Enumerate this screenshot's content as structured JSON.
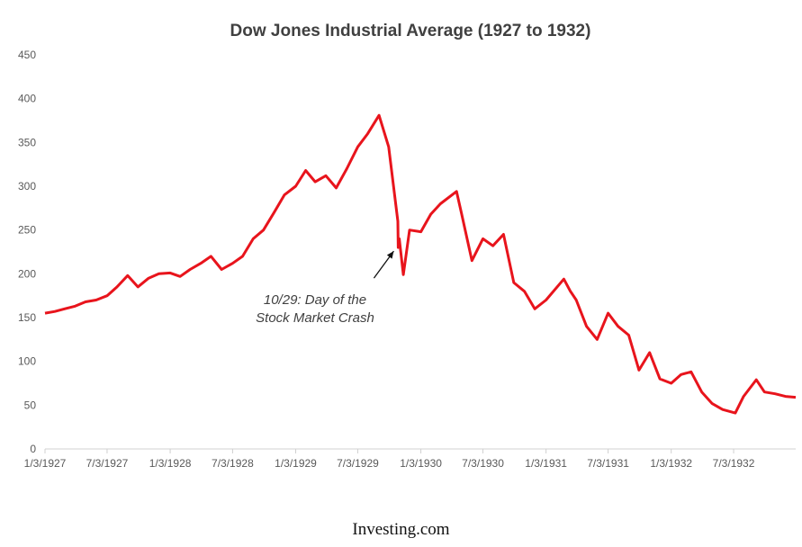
{
  "chart_data": {
    "type": "line",
    "title": "Dow Jones Industrial Average (1927 to 1932)",
    "xlabel": "",
    "ylabel": "",
    "ylim": [
      0,
      450
    ],
    "yticks": [
      "0",
      "50",
      "100",
      "150",
      "200",
      "250",
      "300",
      "350",
      "400",
      "450"
    ],
    "xticks": [
      "1/3/1927",
      "7/3/1927",
      "1/3/1928",
      "7/3/1928",
      "1/3/1929",
      "7/3/1929",
      "1/3/1930",
      "7/3/1930",
      "1/3/1931",
      "7/3/1931",
      "1/3/1932",
      "7/3/1932"
    ],
    "xlim": [
      "1927-01-03",
      "1932-12-31"
    ],
    "grid": false,
    "legend": "none",
    "series": [
      {
        "color": "#e8141c",
        "points": [
          [
            "1927-01-03",
            155
          ],
          [
            "1927-02-01",
            157
          ],
          [
            "1927-03-01",
            160
          ],
          [
            "1927-04-01",
            163
          ],
          [
            "1927-05-01",
            168
          ],
          [
            "1927-06-01",
            170
          ],
          [
            "1927-07-03",
            175
          ],
          [
            "1927-08-01",
            185
          ],
          [
            "1927-09-01",
            198
          ],
          [
            "1927-10-01",
            185
          ],
          [
            "1927-11-01",
            195
          ],
          [
            "1927-12-01",
            200
          ],
          [
            "1928-01-03",
            201
          ],
          [
            "1928-02-01",
            197
          ],
          [
            "1928-03-01",
            205
          ],
          [
            "1928-04-01",
            212
          ],
          [
            "1928-05-01",
            220
          ],
          [
            "1928-06-01",
            205
          ],
          [
            "1928-07-03",
            212
          ],
          [
            "1928-08-01",
            220
          ],
          [
            "1928-09-01",
            240
          ],
          [
            "1928-10-01",
            250
          ],
          [
            "1928-11-01",
            270
          ],
          [
            "1928-12-01",
            290
          ],
          [
            "1929-01-03",
            300
          ],
          [
            "1929-02-01",
            318
          ],
          [
            "1929-03-01",
            305
          ],
          [
            "1929-04-01",
            312
          ],
          [
            "1929-05-01",
            298
          ],
          [
            "1929-06-01",
            320
          ],
          [
            "1929-07-03",
            345
          ],
          [
            "1929-08-01",
            360
          ],
          [
            "1929-09-03",
            381
          ],
          [
            "1929-10-01",
            345
          ],
          [
            "1929-10-28",
            260
          ],
          [
            "1929-10-29",
            230
          ],
          [
            "1929-11-01",
            240
          ],
          [
            "1929-11-13",
            199
          ],
          [
            "1929-12-01",
            250
          ],
          [
            "1930-01-03",
            248
          ],
          [
            "1930-02-01",
            268
          ],
          [
            "1930-03-01",
            280
          ],
          [
            "1930-04-17",
            294
          ],
          [
            "1930-05-01",
            270
          ],
          [
            "1930-06-01",
            215
          ],
          [
            "1930-07-03",
            240
          ],
          [
            "1930-08-01",
            232
          ],
          [
            "1930-09-01",
            245
          ],
          [
            "1930-10-01",
            190
          ],
          [
            "1930-11-01",
            180
          ],
          [
            "1930-12-01",
            160
          ],
          [
            "1931-01-03",
            170
          ],
          [
            "1931-02-24",
            194
          ],
          [
            "1931-03-15",
            180
          ],
          [
            "1931-04-01",
            170
          ],
          [
            "1931-05-01",
            140
          ],
          [
            "1931-06-01",
            125
          ],
          [
            "1931-07-03",
            155
          ],
          [
            "1931-08-01",
            140
          ],
          [
            "1931-09-01",
            130
          ],
          [
            "1931-10-01",
            90
          ],
          [
            "1931-11-01",
            110
          ],
          [
            "1931-12-01",
            80
          ],
          [
            "1932-01-03",
            75
          ],
          [
            "1932-02-01",
            85
          ],
          [
            "1932-03-01",
            88
          ],
          [
            "1932-04-01",
            65
          ],
          [
            "1932-05-01",
            52
          ],
          [
            "1932-06-01",
            45
          ],
          [
            "1932-07-08",
            41
          ],
          [
            "1932-08-01",
            60
          ],
          [
            "1932-09-07",
            79
          ],
          [
            "1932-10-01",
            65
          ],
          [
            "1932-11-01",
            63
          ],
          [
            "1932-12-01",
            60
          ],
          [
            "1932-12-31",
            59
          ]
        ]
      }
    ],
    "annotations": [
      {
        "text_lines": [
          "10/29:  Day of the",
          "Stock Market Crash"
        ],
        "target": [
          "1929-10-29",
          230
        ]
      }
    ]
  },
  "source": "Investing.com"
}
